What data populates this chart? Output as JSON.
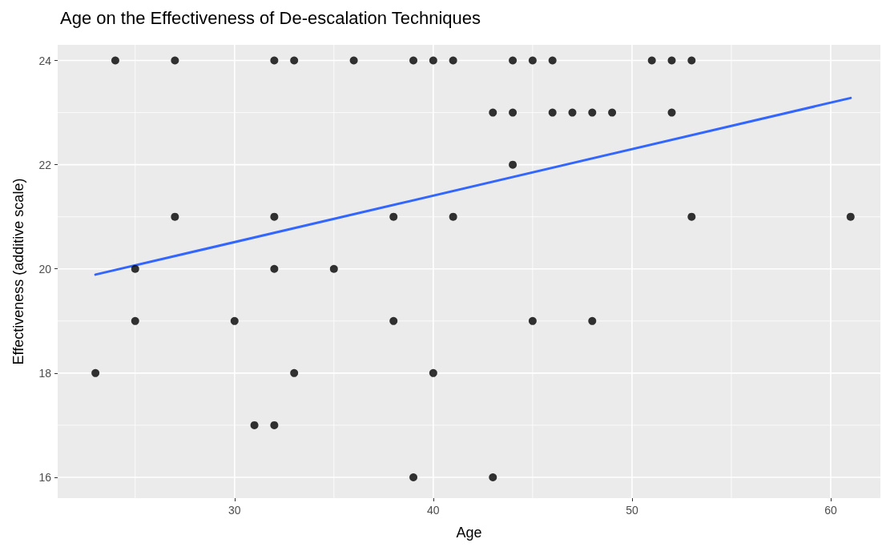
{
  "chart_data": {
    "type": "scatter",
    "title": "Age on the Effectiveness of De-escalation Techniques",
    "xlabel": "Age",
    "ylabel": "Effectiveness (additive scale)",
    "xlim": [
      21.1,
      62.5
    ],
    "xticks": [
      30,
      40,
      50,
      60
    ],
    "ylim": [
      15.6,
      24.3
    ],
    "yticks": [
      16,
      18,
      20,
      22,
      24
    ],
    "grid": true,
    "marker": "circle",
    "series": [
      {
        "color": "#000000",
        "x": [
          24,
          27,
          32,
          33,
          36,
          39,
          40,
          41,
          44,
          45,
          46,
          51,
          52,
          53,
          43,
          44,
          46,
          47,
          48,
          49,
          52,
          44,
          27,
          32,
          38,
          41,
          53,
          61,
          25,
          32,
          35,
          25,
          30,
          38,
          45,
          48,
          23,
          33,
          40,
          31,
          32,
          39,
          43
        ],
        "values": [
          24,
          24,
          24,
          24,
          24,
          24,
          24,
          24,
          24,
          24,
          24,
          24,
          24,
          24,
          23,
          23,
          23,
          23,
          23,
          23,
          23,
          22,
          21,
          21,
          21,
          21,
          21,
          21,
          20,
          20,
          20,
          19,
          19,
          19,
          19,
          19,
          18,
          18,
          18,
          17,
          17,
          16,
          16
        ]
      },
      {
        "type": "line",
        "color": "#3366ff",
        "marker": "none",
        "x": [
          23,
          61
        ],
        "values": [
          19.89,
          23.28
        ]
      }
    ]
  }
}
